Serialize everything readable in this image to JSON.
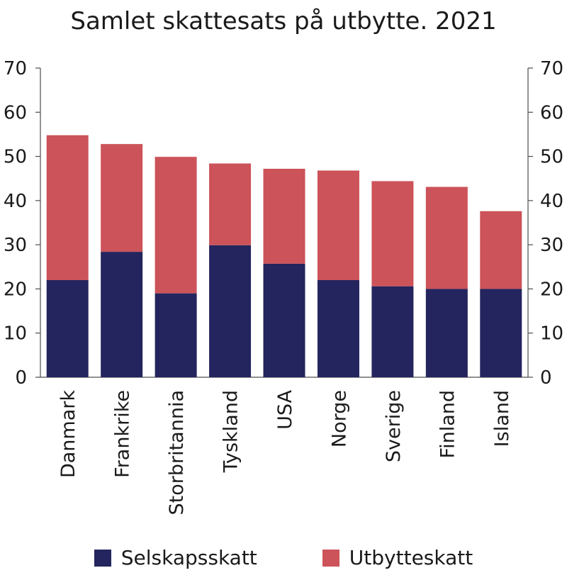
{
  "chart_data": {
    "type": "bar",
    "stacked": true,
    "title": "Samlet skattesats på utbytte. 2021",
    "categories": [
      "Danmark",
      "Frankrike",
      "Storbritannia",
      "Tyskland",
      "USA",
      "Norge",
      "Sverige",
      "Finland",
      "Island"
    ],
    "series": [
      {
        "name": "Selskapsskatt",
        "color": "#24255e",
        "values": [
          22,
          28.4,
          19,
          29.9,
          25.7,
          22,
          20.6,
          20,
          20
        ]
      },
      {
        "name": "Utbytteskatt",
        "color": "#cc5359",
        "values": [
          32.8,
          24.4,
          30.9,
          18.5,
          21.5,
          24.8,
          23.8,
          23.1,
          17.6
        ]
      }
    ],
    "ylim": [
      0,
      70
    ],
    "yticks": [
      0,
      10,
      20,
      30,
      40,
      50,
      60,
      70
    ],
    "y_axis_both_sides": true,
    "legend_position": "bottom",
    "grid": false
  }
}
